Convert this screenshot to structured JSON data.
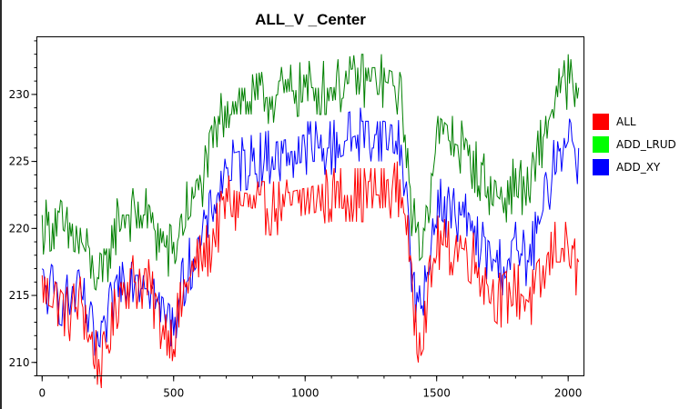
{
  "chart_data": {
    "type": "line",
    "title": "ALL_V _Center",
    "xlabel": "",
    "ylabel": "",
    "xlim": [
      -20,
      2060
    ],
    "ylim": [
      209,
      234.3
    ],
    "xticks": [
      0,
      500,
      1000,
      1500,
      2000
    ],
    "yticks": [
      210,
      215,
      220,
      225,
      230
    ],
    "x_minor_step": 100,
    "y_minor_step": 1,
    "grid": false,
    "legend_position": "right",
    "series": [
      {
        "name": "ALL",
        "color": "#ff0000",
        "x": [
          0,
          50,
          100,
          150,
          200,
          230,
          260,
          300,
          400,
          450,
          500,
          550,
          600,
          650,
          700,
          800,
          900,
          1000,
          1100,
          1200,
          1300,
          1350,
          1380,
          1400,
          1430,
          1450,
          1500,
          1550,
          1600,
          1650,
          1700,
          1750,
          1800,
          1850,
          1900,
          1950,
          2000,
          2040
        ],
        "values": [
          215.5,
          215,
          213.5,
          214.5,
          210.5,
          210,
          212,
          216,
          216,
          213,
          212,
          216,
          217.5,
          219,
          222,
          221.5,
          221.5,
          222,
          222.5,
          222.5,
          222.5,
          223,
          222,
          216,
          212,
          213,
          219,
          218.5,
          218.5,
          217.5,
          215.5,
          214.5,
          215.5,
          214.5,
          216,
          218.5,
          218.5,
          216.5
        ]
      },
      {
        "name": "ADD_LRUD",
        "color": "#008000",
        "x": [
          0,
          50,
          100,
          150,
          200,
          230,
          260,
          300,
          400,
          450,
          500,
          550,
          600,
          650,
          700,
          800,
          900,
          1000,
          1100,
          1200,
          1300,
          1350,
          1380,
          1400,
          1430,
          1450,
          1500,
          1550,
          1600,
          1650,
          1700,
          1750,
          1800,
          1850,
          1900,
          1950,
          2000,
          2040
        ],
        "values": [
          220,
          220.5,
          219.5,
          219,
          216.5,
          216,
          219,
          221,
          221,
          219,
          218,
          221.5,
          223,
          226,
          229.5,
          229.5,
          230,
          230.5,
          230.5,
          231,
          231,
          230.5,
          228,
          222,
          218.5,
          219,
          227.5,
          226.5,
          226,
          224.5,
          223,
          222,
          223.5,
          222.5,
          226.5,
          229.5,
          231,
          229.5
        ]
      },
      {
        "name": "ADD_XY",
        "color": "#0000ff",
        "x": [
          0,
          50,
          100,
          150,
          200,
          230,
          260,
          300,
          400,
          450,
          500,
          550,
          600,
          650,
          700,
          800,
          900,
          1000,
          1100,
          1200,
          1300,
          1350,
          1380,
          1400,
          1430,
          1450,
          1500,
          1550,
          1600,
          1650,
          1700,
          1750,
          1800,
          1850,
          1900,
          1950,
          2000,
          2040
        ],
        "values": [
          216,
          215,
          214.5,
          215,
          211.5,
          211,
          214,
          216.5,
          216.5,
          214,
          213,
          217,
          218.5,
          221.5,
          224.5,
          225,
          225.5,
          226,
          226,
          227,
          227,
          226.5,
          224,
          218,
          213.5,
          214.5,
          222,
          221,
          221,
          219,
          218,
          217,
          218.5,
          217.5,
          221,
          225,
          227.5,
          225
        ]
      }
    ]
  }
}
